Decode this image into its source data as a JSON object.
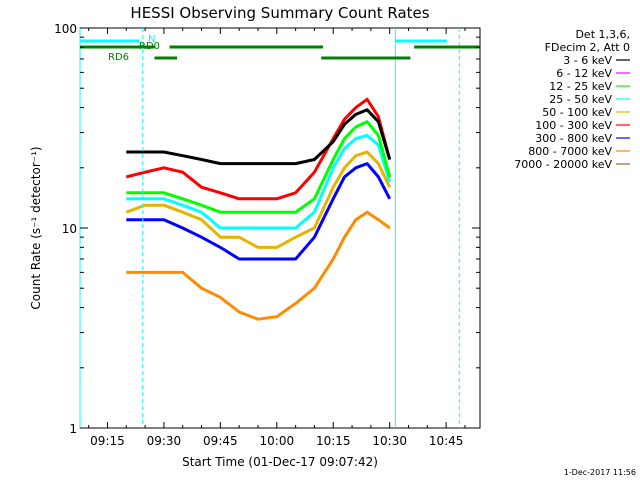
{
  "chart_data": {
    "type": "line",
    "title": "HESSI Observing Summary Count Rates",
    "xlabel": "Start Time (01-Dec-17 09:07:42)",
    "ylabel": "Count Rate (s⁻¹ detector⁻¹)",
    "y_scale": "log",
    "ylim": [
      1,
      100
    ],
    "y_ticks": [
      1,
      10,
      100
    ],
    "y_tick_labels": [
      "1",
      "10",
      "100"
    ],
    "xlim_minutes": [
      547.7,
      654.0
    ],
    "x_ticks": [
      555,
      570,
      585,
      600,
      615,
      630,
      645
    ],
    "x_tick_labels": [
      "09:15",
      "09:30",
      "09:45",
      "10:00",
      "10:15",
      "10:30",
      "10:45"
    ],
    "legend_position": "right",
    "legend_header": [
      "Det 1,3,6,",
      "FDecim 2, Att 0"
    ],
    "series": [
      {
        "name": "3 - 6 keV",
        "color": "#000000",
        "x": [
          560,
          565,
          570,
          575,
          580,
          585,
          590,
          595,
          600,
          605,
          610,
          615,
          618,
          621,
          624,
          627,
          630
        ],
        "y": [
          24,
          24,
          24,
          23,
          22,
          21,
          21,
          21,
          21,
          21,
          22,
          27,
          33,
          37,
          39,
          34,
          22
        ]
      },
      {
        "name": "6 - 12 keV",
        "color": "#ff00ff",
        "x": [
          560,
          565,
          570,
          575,
          580,
          585,
          590,
          595,
          600,
          605,
          610,
          615,
          618,
          621,
          624,
          627,
          630
        ],
        "y": [
          17,
          18,
          19,
          18,
          16,
          15,
          14,
          14,
          14,
          15,
          17,
          25,
          33,
          38,
          40,
          32,
          20
        ]
      },
      {
        "name": "12 - 25 keV",
        "color": "#00ff00",
        "x": [
          560,
          565,
          570,
          575,
          580,
          585,
          590,
          595,
          600,
          605,
          610,
          615,
          618,
          621,
          624,
          627,
          630
        ],
        "y": [
          15,
          15,
          15,
          14,
          13,
          12,
          12,
          12,
          12,
          12,
          14,
          22,
          28,
          32,
          34,
          29,
          18
        ]
      },
      {
        "name": "25 - 50 keV",
        "color": "#00ffff",
        "x": [
          560,
          565,
          570,
          575,
          580,
          585,
          590,
          595,
          600,
          605,
          610,
          615,
          618,
          621,
          624,
          627,
          630
        ],
        "y": [
          14,
          14,
          14,
          13,
          12,
          10,
          10,
          10,
          10,
          10,
          12,
          20,
          25,
          28,
          29,
          26,
          17
        ]
      },
      {
        "name": "50 - 100 keV",
        "color": "#e6b400",
        "x": [
          560,
          565,
          570,
          575,
          580,
          585,
          590,
          595,
          600,
          605,
          610,
          615,
          618,
          621,
          624,
          627,
          630
        ],
        "y": [
          12,
          13,
          13,
          12,
          11,
          9,
          9,
          8,
          8,
          9,
          10,
          16,
          20,
          23,
          24,
          21,
          16
        ]
      },
      {
        "name": "100 - 300 keV",
        "color": "#ff0000",
        "x": [
          560,
          565,
          570,
          575,
          580,
          585,
          590,
          595,
          600,
          605,
          610,
          615,
          618,
          621,
          624,
          627,
          630
        ],
        "y": [
          18,
          19,
          20,
          19,
          16,
          15,
          14,
          14,
          14,
          15,
          19,
          28,
          35,
          40,
          44,
          36,
          22
        ]
      },
      {
        "name": "300 - 800 keV",
        "color": "#0000ff",
        "x": [
          560,
          565,
          570,
          575,
          580,
          585,
          590,
          595,
          600,
          605,
          610,
          615,
          618,
          621,
          624,
          627,
          630
        ],
        "y": [
          11,
          11,
          11,
          10,
          9,
          8,
          7,
          7,
          7,
          7,
          9,
          14,
          18,
          20,
          21,
          18,
          14
        ]
      },
      {
        "name": "800 - 7000 keV",
        "color": "#ff8c00",
        "x": [
          560,
          565,
          570,
          575,
          580,
          585,
          590,
          595,
          600,
          605,
          610,
          615,
          618,
          621,
          624,
          627,
          630
        ],
        "y": [
          6,
          6,
          6,
          6,
          5,
          4.5,
          3.8,
          3.5,
          3.6,
          4.2,
          5,
          7,
          9,
          11,
          12,
          11,
          10
        ]
      },
      {
        "name": "7000 - 20000 keV",
        "color": "#8b6914",
        "x": [],
        "y": []
      }
    ],
    "flag_bars": [
      {
        "label": "N",
        "color": "#00ffff",
        "segments": [
          [
            547.7,
            563.5
          ],
          [
            631.5,
            645.2
          ]
        ]
      },
      {
        "label": "RD0",
        "color": "#008000",
        "segments": [
          [
            547.7,
            567.5
          ],
          [
            571.5,
            612.3
          ],
          [
            636.5,
            654.0
          ]
        ]
      },
      {
        "label": "RD6",
        "color": "#008000",
        "segments": [
          [
            567.5,
            573.5
          ],
          [
            611.8,
            635.5
          ]
        ]
      }
    ],
    "vertical_markers": [
      {
        "x": 547.7,
        "style": "solid",
        "color": "#00ffff"
      },
      {
        "x": 564.4,
        "style": "dashed",
        "color": "#00ffff"
      },
      {
        "x": 631.5,
        "style": "solid",
        "color": "#00ffff"
      },
      {
        "x": 648.5,
        "style": "dashed",
        "color": "#00ffff"
      }
    ]
  },
  "stamp": "1-Dec-2017 11:56"
}
